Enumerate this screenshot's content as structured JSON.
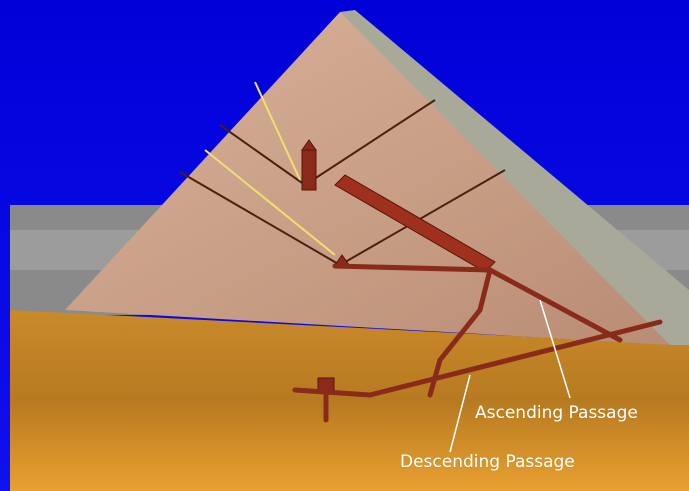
{
  "annotations": {
    "ascending": "Ascending Passage",
    "descending": "Descending Passage"
  }
}
